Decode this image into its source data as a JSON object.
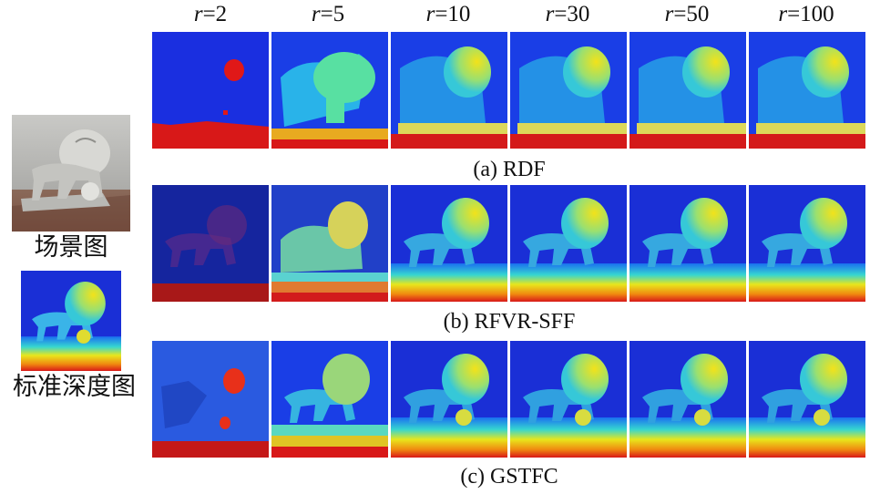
{
  "column_headers": [
    {
      "var": "r",
      "eq": "=2"
    },
    {
      "var": "r",
      "eq": "=5"
    },
    {
      "var": "r",
      "eq": "=10"
    },
    {
      "var": "r",
      "eq": "=30"
    },
    {
      "var": "r",
      "eq": "=50"
    },
    {
      "var": "r",
      "eq": "=100"
    }
  ],
  "rows": [
    {
      "caption": "(a) RDF"
    },
    {
      "caption": "(b) RFVR-SFF"
    },
    {
      "caption": "(c) GSTFC"
    }
  ],
  "side": {
    "scene_label": "场景图",
    "gt_label": "标准深度图"
  },
  "colors": {
    "far": "#1a2fd6",
    "mid": "#36d6d0",
    "near_yellow": "#f2e21a",
    "red": "#e01818"
  }
}
